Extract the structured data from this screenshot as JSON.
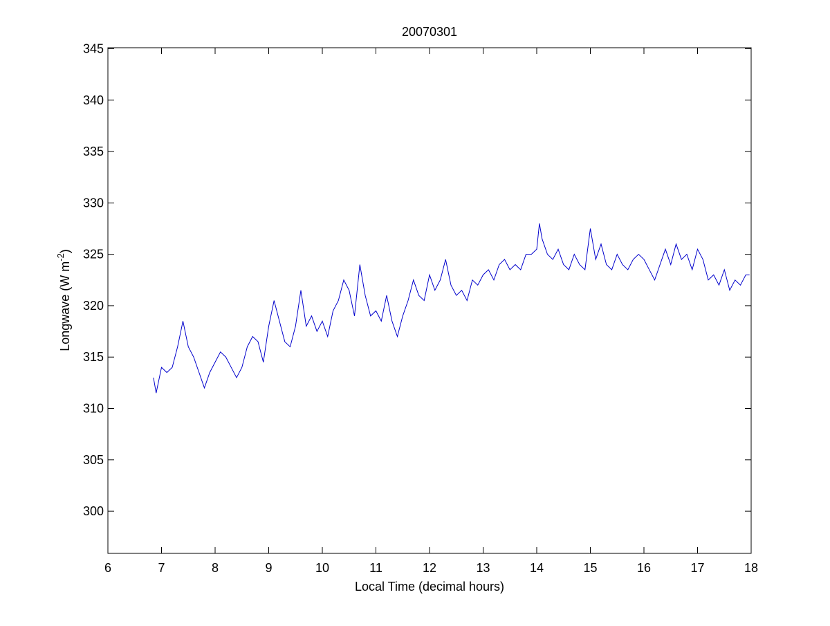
{
  "chart_data": {
    "type": "line",
    "title": "20070301",
    "x_label": "Local Time (decimal hours)",
    "y_label": {
      "text": "Longwave (W m",
      "superscript": "-2",
      "suffix": ")"
    },
    "x": [
      6.85,
      6.9,
      7.0,
      7.1,
      7.2,
      7.3,
      7.4,
      7.5,
      7.6,
      7.7,
      7.8,
      7.9,
      8.0,
      8.1,
      8.2,
      8.3,
      8.4,
      8.5,
      8.6,
      8.7,
      8.8,
      8.9,
      9.0,
      9.1,
      9.2,
      9.3,
      9.4,
      9.5,
      9.6,
      9.7,
      9.8,
      9.9,
      10.0,
      10.1,
      10.2,
      10.3,
      10.4,
      10.5,
      10.6,
      10.7,
      10.8,
      10.9,
      11.0,
      11.1,
      11.2,
      11.3,
      11.4,
      11.5,
      11.6,
      11.7,
      11.8,
      11.9,
      12.0,
      12.1,
      12.2,
      12.3,
      12.4,
      12.5,
      12.6,
      12.7,
      12.8,
      12.9,
      13.0,
      13.1,
      13.2,
      13.3,
      13.4,
      13.5,
      13.6,
      13.7,
      13.8,
      13.9,
      14.0,
      14.05,
      14.1,
      14.2,
      14.3,
      14.4,
      14.5,
      14.6,
      14.7,
      14.8,
      14.9,
      15.0,
      15.1,
      15.2,
      15.3,
      15.4,
      15.5,
      15.6,
      15.7,
      15.8,
      15.9,
      16.0,
      16.1,
      16.2,
      16.3,
      16.4,
      16.5,
      16.6,
      16.7,
      16.8,
      16.9,
      17.0,
      17.1,
      17.2,
      17.3,
      17.4,
      17.5,
      17.6,
      17.7,
      17.8,
      17.9,
      17.97
    ],
    "series": [
      {
        "name": "Longwave",
        "color": "#0000cc",
        "values": [
          313,
          311.5,
          314,
          313.5,
          314,
          316,
          318.5,
          316,
          315,
          313.5,
          312,
          313.5,
          314.5,
          315.5,
          315,
          314,
          313,
          314,
          316,
          317,
          316.5,
          314.5,
          318,
          320.5,
          318.5,
          316.5,
          316,
          318,
          321.5,
          318,
          319,
          317.5,
          318.5,
          317,
          319.5,
          320.5,
          322.5,
          321.5,
          319,
          324,
          321,
          319,
          319.5,
          318.5,
          321,
          318.5,
          317,
          319,
          320.5,
          322.5,
          321,
          320.5,
          323,
          321.5,
          322.5,
          324.5,
          322,
          321,
          321.5,
          320.5,
          322.5,
          322,
          323,
          323.5,
          322.5,
          324,
          324.5,
          323.5,
          324,
          323.5,
          325,
          325,
          325.5,
          328,
          326.5,
          325,
          324.5,
          325.5,
          324,
          323.5,
          325,
          324,
          323.5,
          327.5,
          324.5,
          326,
          324,
          323.5,
          325,
          324,
          323.5,
          324.5,
          325,
          324.5,
          323.5,
          322.5,
          324,
          325.5,
          324,
          326,
          324.5,
          325,
          323.5,
          325.5,
          324.5,
          322.5,
          323,
          322,
          323.5,
          321.5,
          322.5,
          322,
          323,
          323
        ]
      }
    ],
    "xlim": [
      6,
      18
    ],
    "xticks": [
      6,
      7,
      8,
      9,
      10,
      11,
      12,
      13,
      14,
      15,
      16,
      17,
      18
    ],
    "ylim": [
      295.9,
      345.1
    ],
    "yticks": [
      300,
      305,
      310,
      315,
      320,
      325,
      330,
      335,
      340,
      345
    ]
  }
}
